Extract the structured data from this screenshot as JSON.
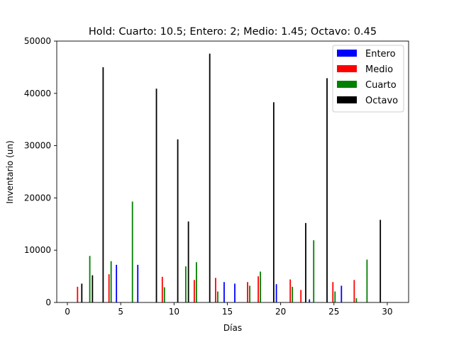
{
  "chart_data": {
    "type": "bar",
    "title": "Hold: Cuarto: 10.5; Entero: 2; Medio: 1.45; Octavo: 0.45",
    "xlabel": "Días",
    "ylabel": "Inventario (un)",
    "xlim": [
      -1,
      32
    ],
    "ylim": [
      0,
      50000
    ],
    "xticks": [
      0,
      5,
      10,
      15,
      20,
      25,
      30
    ],
    "yticks": [
      0,
      10000,
      20000,
      30000,
      40000,
      50000
    ],
    "legend_position": "top-right",
    "grid": false,
    "series": [
      {
        "name": "Entero",
        "color": "#0000ff",
        "points": [
          {
            "x": 4.6,
            "y": 7200
          },
          {
            "x": 6.6,
            "y": 7200
          },
          {
            "x": 14.7,
            "y": 3900
          },
          {
            "x": 15.7,
            "y": 3600
          },
          {
            "x": 19.6,
            "y": 3500
          },
          {
            "x": 22.7,
            "y": 600
          },
          {
            "x": 25.7,
            "y": 3200
          }
        ]
      },
      {
        "name": "Medio",
        "color": "#ff0000",
        "points": [
          {
            "x": 0.95,
            "y": 3000
          },
          {
            "x": 3.9,
            "y": 5400
          },
          {
            "x": 8.9,
            "y": 4900
          },
          {
            "x": 11.9,
            "y": 4300
          },
          {
            "x": 13.9,
            "y": 4700
          },
          {
            "x": 16.9,
            "y": 3900
          },
          {
            "x": 17.9,
            "y": 5000
          },
          {
            "x": 20.9,
            "y": 4400
          },
          {
            "x": 21.9,
            "y": 2400
          },
          {
            "x": 24.9,
            "y": 3900
          },
          {
            "x": 26.9,
            "y": 4300
          }
        ]
      },
      {
        "name": "Cuarto",
        "color": "#008000",
        "points": [
          {
            "x": 2.1,
            "y": 8900
          },
          {
            "x": 4.1,
            "y": 7900
          },
          {
            "x": 6.1,
            "y": 19300
          },
          {
            "x": 9.1,
            "y": 2900
          },
          {
            "x": 11.1,
            "y": 6900
          },
          {
            "x": 12.1,
            "y": 7700
          },
          {
            "x": 14.1,
            "y": 2100
          },
          {
            "x": 17.1,
            "y": 3200
          },
          {
            "x": 18.1,
            "y": 5900
          },
          {
            "x": 21.1,
            "y": 3000
          },
          {
            "x": 23.1,
            "y": 11900
          },
          {
            "x": 25.1,
            "y": 2100
          },
          {
            "x": 27.1,
            "y": 800
          },
          {
            "x": 28.1,
            "y": 8200
          }
        ]
      },
      {
        "name": "Octavo",
        "color": "#000000",
        "points": [
          {
            "x": 1.35,
            "y": 3600
          },
          {
            "x": 2.35,
            "y": 5200
          },
          {
            "x": 3.35,
            "y": 45000
          },
          {
            "x": 8.35,
            "y": 40900
          },
          {
            "x": 10.35,
            "y": 31200
          },
          {
            "x": 11.35,
            "y": 15500
          },
          {
            "x": 13.35,
            "y": 47600
          },
          {
            "x": 19.35,
            "y": 38300
          },
          {
            "x": 22.35,
            "y": 15200
          },
          {
            "x": 24.35,
            "y": 42900
          },
          {
            "x": 29.35,
            "y": 15800
          }
        ]
      }
    ]
  }
}
